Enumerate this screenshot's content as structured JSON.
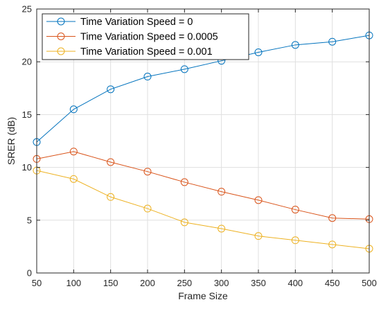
{
  "chart_data": {
    "type": "line",
    "xlabel": "Frame Size",
    "ylabel": "SRER (dB)",
    "x": [
      50,
      100,
      150,
      200,
      250,
      300,
      350,
      400,
      450,
      500
    ],
    "xlim": [
      50,
      500
    ],
    "ylim": [
      0,
      25
    ],
    "xticks": [
      50,
      100,
      150,
      200,
      250,
      300,
      350,
      400,
      450,
      500
    ],
    "yticks": [
      0,
      5,
      10,
      15,
      20,
      25
    ],
    "grid": true,
    "legend_position": "top-left",
    "marker": "circle",
    "series": [
      {
        "name": "Time Variation Speed = 0",
        "color": "#0072bd",
        "values": [
          12.4,
          15.5,
          17.4,
          18.6,
          19.3,
          20.1,
          20.9,
          21.6,
          21.9,
          22.5
        ]
      },
      {
        "name": "Time Variation Speed = 0.0005",
        "color": "#d95319",
        "values": [
          10.8,
          11.5,
          10.5,
          9.6,
          8.6,
          7.7,
          6.9,
          6.0,
          5.2,
          5.1
        ]
      },
      {
        "name": "Time Variation Speed = 0.001",
        "color": "#edb120",
        "values": [
          9.7,
          8.9,
          7.2,
          6.1,
          4.8,
          4.2,
          3.5,
          3.1,
          2.7,
          2.3
        ]
      }
    ]
  }
}
